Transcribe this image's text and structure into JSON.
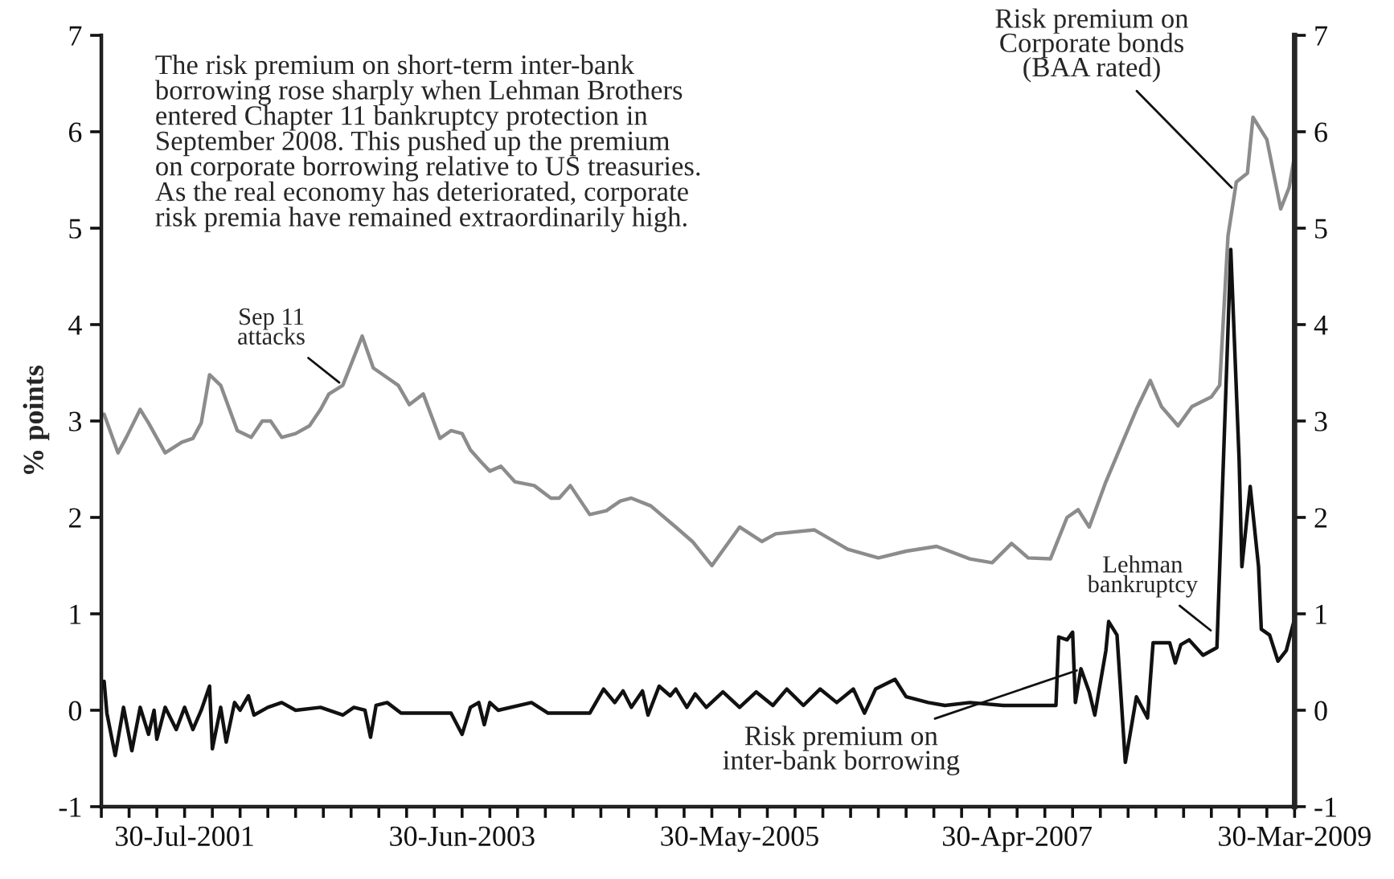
{
  "chart_data": {
    "type": "line",
    "ylabel": "% points",
    "annotations": [
      "The risk premium on short-term inter-bank\nborrowing rose sharply when Lehman Brothers\nentered Chapter 11 bankruptcy protection in\nSeptember 2008. This pushed up the premium\non corporate borrowing relative to US treasuries.\nAs the real economy has deteriorated, corporate\nrisk premia have remained extraordinarily high.",
      {
        "text": "Sep 11\nattacks",
        "x": "2002-09-02",
        "y": 3.37
      },
      {
        "text": "Lehman\nbankruptcy",
        "x": "2008-09-08",
        "y": 0.8
      }
    ],
    "series": [
      {
        "name": "Risk premium on\nCorporate bonds\n(BAA rated)",
        "color": "#8c8c8c",
        "x": [
          "2001-01-08",
          "2001-02-12",
          "2001-03-05",
          "2001-04-09",
          "2001-04-30",
          "2001-06-11",
          "2001-07-23",
          "2001-08-20",
          "2001-09-10",
          "2001-10-01",
          "2001-10-29",
          "2001-12-10",
          "2002-01-14",
          "2002-02-11",
          "2002-03-04",
          "2002-04-01",
          "2002-05-06",
          "2002-06-10",
          "2002-07-08",
          "2002-07-29",
          "2002-09-02",
          "2002-10-21",
          "2002-11-18",
          "2002-12-23",
          "2003-01-20",
          "2003-02-17",
          "2003-03-24",
          "2003-05-05",
          "2003-06-02",
          "2003-06-30",
          "2003-07-21",
          "2003-08-18",
          "2003-09-08",
          "2003-10-06",
          "2003-11-10",
          "2003-12-29",
          "2004-02-09",
          "2004-03-01",
          "2004-03-29",
          "2004-05-17",
          "2004-06-28",
          "2004-08-02",
          "2004-08-30",
          "2004-10-18",
          "2004-12-20",
          "2005-01-31",
          "2005-03-21",
          "2005-05-30",
          "2005-07-25",
          "2005-08-29",
          "2005-12-05",
          "2006-02-27",
          "2006-05-15",
          "2006-07-24",
          "2006-10-09",
          "2007-01-01",
          "2007-02-26",
          "2007-04-16",
          "2007-05-28",
          "2007-07-23",
          "2007-09-03",
          "2007-10-01",
          "2007-10-29",
          "2007-12-10",
          "2008-01-21",
          "2008-02-25",
          "2008-03-31",
          "2008-04-28",
          "2008-06-09",
          "2008-07-14",
          "2008-09-01",
          "2008-09-22",
          "2008-10-13",
          "2008-11-03",
          "2008-12-01",
          "2008-12-15",
          "2009-01-19",
          "2009-02-23",
          "2009-03-16",
          "2009-03-30"
        ],
        "values": [
          3.07,
          2.67,
          2.83,
          3.12,
          2.98,
          2.67,
          2.78,
          2.82,
          2.98,
          3.48,
          3.37,
          2.9,
          2.83,
          3.0,
          3.0,
          2.83,
          2.87,
          2.95,
          3.12,
          3.28,
          3.37,
          3.88,
          3.55,
          3.45,
          3.37,
          3.17,
          3.28,
          2.82,
          2.9,
          2.87,
          2.7,
          2.57,
          2.48,
          2.53,
          2.37,
          2.33,
          2.2,
          2.2,
          2.33,
          2.03,
          2.07,
          2.17,
          2.2,
          2.12,
          1.9,
          1.75,
          1.5,
          1.9,
          1.75,
          1.83,
          1.87,
          1.67,
          1.58,
          1.65,
          1.7,
          1.57,
          1.53,
          1.73,
          1.58,
          1.57,
          2.0,
          2.08,
          1.9,
          2.37,
          2.78,
          3.12,
          3.42,
          3.15,
          2.95,
          3.15,
          3.25,
          3.37,
          4.92,
          5.48,
          5.57,
          6.15,
          5.92,
          5.2,
          5.42,
          5.75
        ]
      },
      {
        "name": "Risk premium on\ninter-bank borrowing",
        "color": "#111111",
        "x": [
          "2001-01-08",
          "2001-01-15",
          "2001-02-05",
          "2001-02-26",
          "2001-03-19",
          "2001-04-09",
          "2001-04-30",
          "2001-05-14",
          "2001-05-21",
          "2001-06-11",
          "2001-07-09",
          "2001-07-30",
          "2001-08-20",
          "2001-09-10",
          "2001-10-01",
          "2001-10-08",
          "2001-10-29",
          "2001-11-12",
          "2001-12-03",
          "2001-12-17",
          "2002-01-07",
          "2002-01-21",
          "2002-02-25",
          "2002-04-01",
          "2002-05-06",
          "2002-07-08",
          "2002-09-02",
          "2002-09-30",
          "2002-10-28",
          "2002-11-11",
          "2002-11-25",
          "2002-12-23",
          "2003-01-27",
          "2003-06-02",
          "2003-06-30",
          "2003-07-21",
          "2003-08-11",
          "2003-08-25",
          "2003-09-08",
          "2003-09-29",
          "2003-12-22",
          "2004-02-02",
          "2004-05-17",
          "2004-06-21",
          "2004-07-19",
          "2004-08-09",
          "2004-08-30",
          "2004-09-27",
          "2004-10-11",
          "2004-11-08",
          "2004-12-06",
          "2004-12-20",
          "2005-01-17",
          "2005-02-07",
          "2005-03-07",
          "2005-04-18",
          "2005-05-30",
          "2005-07-11",
          "2005-08-22",
          "2005-09-26",
          "2005-11-07",
          "2005-12-19",
          "2006-01-30",
          "2006-03-13",
          "2006-04-10",
          "2006-05-08",
          "2006-06-26",
          "2006-07-24",
          "2006-09-18",
          "2006-10-30",
          "2007-01-01",
          "2007-03-26",
          "2007-08-06",
          "2007-08-13",
          "2007-09-03",
          "2007-09-17",
          "2007-09-24",
          "2007-10-08",
          "2007-10-29",
          "2007-11-12",
          "2007-12-10",
          "2007-12-17",
          "2008-01-07",
          "2008-01-28",
          "2008-02-25",
          "2008-03-24",
          "2008-04-07",
          "2008-05-19",
          "2008-06-02",
          "2008-06-16",
          "2008-07-07",
          "2008-08-11",
          "2008-09-15",
          "2008-10-20",
          "2008-11-10",
          "2008-11-17",
          "2008-12-08",
          "2008-12-29",
          "2009-01-05",
          "2009-01-26",
          "2009-02-16",
          "2009-03-09",
          "2009-03-30"
        ],
        "values": [
          0.3,
          -0.03,
          -0.47,
          0.03,
          -0.42,
          0.03,
          -0.25,
          0.0,
          -0.3,
          0.03,
          -0.2,
          0.03,
          -0.2,
          0.0,
          0.25,
          -0.4,
          0.03,
          -0.33,
          0.08,
          0.0,
          0.15,
          -0.05,
          0.03,
          0.08,
          0.0,
          0.03,
          -0.05,
          0.03,
          0.0,
          -0.28,
          0.05,
          0.08,
          -0.03,
          -0.03,
          -0.25,
          0.03,
          0.08,
          -0.15,
          0.08,
          0.0,
          0.08,
          -0.03,
          -0.03,
          0.22,
          0.08,
          0.2,
          0.03,
          0.2,
          -0.05,
          0.25,
          0.15,
          0.22,
          0.03,
          0.17,
          0.03,
          0.19,
          0.03,
          0.19,
          0.05,
          0.22,
          0.05,
          0.22,
          0.08,
          0.22,
          -0.03,
          0.22,
          0.32,
          0.14,
          0.08,
          0.05,
          0.08,
          0.05,
          0.05,
          0.76,
          0.73,
          0.81,
          0.08,
          0.43,
          0.19,
          -0.05,
          0.62,
          0.92,
          0.78,
          -0.54,
          0.14,
          -0.08,
          0.7,
          0.7,
          0.49,
          0.68,
          0.73,
          0.57,
          0.65,
          4.78,
          2.6,
          1.49,
          2.32,
          1.49,
          0.84,
          0.78,
          0.51,
          0.62,
          0.95
        ]
      }
    ],
    "xlim": [
      "2001-01-01",
      "2009-03-30"
    ],
    "xticks": [
      {
        "value": "2001-01-01",
        "label": null
      },
      {
        "value": "2001-03-12",
        "label": null
      },
      {
        "value": "2001-05-21",
        "label": null
      },
      {
        "value": "2001-07-30",
        "label": "30-Jul-2001"
      },
      {
        "value": "2001-10-08",
        "label": null
      },
      {
        "value": "2001-12-17",
        "label": null
      },
      {
        "value": "2002-02-25",
        "label": null
      },
      {
        "value": "2002-05-06",
        "label": null
      },
      {
        "value": "2002-07-15",
        "label": null
      },
      {
        "value": "2002-09-23",
        "label": null
      },
      {
        "value": "2002-12-02",
        "label": null
      },
      {
        "value": "2003-02-10",
        "label": null
      },
      {
        "value": "2003-04-21",
        "label": null
      },
      {
        "value": "2003-06-30",
        "label": "30-Jun-2003"
      },
      {
        "value": "2003-09-08",
        "label": null
      },
      {
        "value": "2003-11-17",
        "label": null
      },
      {
        "value": "2004-01-26",
        "label": null
      },
      {
        "value": "2004-04-05",
        "label": null
      },
      {
        "value": "2004-06-14",
        "label": null
      },
      {
        "value": "2004-08-23",
        "label": null
      },
      {
        "value": "2004-11-01",
        "label": null
      },
      {
        "value": "2005-01-10",
        "label": null
      },
      {
        "value": "2005-03-21",
        "label": null
      },
      {
        "value": "2005-05-30",
        "label": "30-May-2005"
      },
      {
        "value": "2005-08-08",
        "label": null
      },
      {
        "value": "2005-10-17",
        "label": null
      },
      {
        "value": "2005-12-26",
        "label": null
      },
      {
        "value": "2006-03-06",
        "label": null
      },
      {
        "value": "2006-05-15",
        "label": null
      },
      {
        "value": "2006-07-24",
        "label": null
      },
      {
        "value": "2006-10-02",
        "label": null
      },
      {
        "value": "2006-12-11",
        "label": null
      },
      {
        "value": "2007-02-19",
        "label": null
      },
      {
        "value": "2007-04-30",
        "label": "30-Apr-2007"
      },
      {
        "value": "2007-07-09",
        "label": null
      },
      {
        "value": "2007-09-17",
        "label": null
      },
      {
        "value": "2007-11-26",
        "label": null
      },
      {
        "value": "2008-02-04",
        "label": null
      },
      {
        "value": "2008-04-14",
        "label": null
      },
      {
        "value": "2008-06-23",
        "label": null
      },
      {
        "value": "2008-09-01",
        "label": null
      },
      {
        "value": "2008-11-10",
        "label": null
      },
      {
        "value": "2009-01-19",
        "label": null
      },
      {
        "value": "2009-03-30",
        "label": "30-Mar-2009"
      }
    ],
    "ylim": [
      -1,
      7
    ],
    "yticks": [
      -1,
      0,
      1,
      2,
      3,
      4,
      5,
      6,
      7
    ],
    "y2lim": [
      -1,
      7
    ],
    "y2ticks": [
      -1,
      0,
      1,
      2,
      3,
      4,
      5,
      6,
      7
    ],
    "grid": false,
    "legend": false,
    "marker": "none",
    "line_style": "solid"
  }
}
